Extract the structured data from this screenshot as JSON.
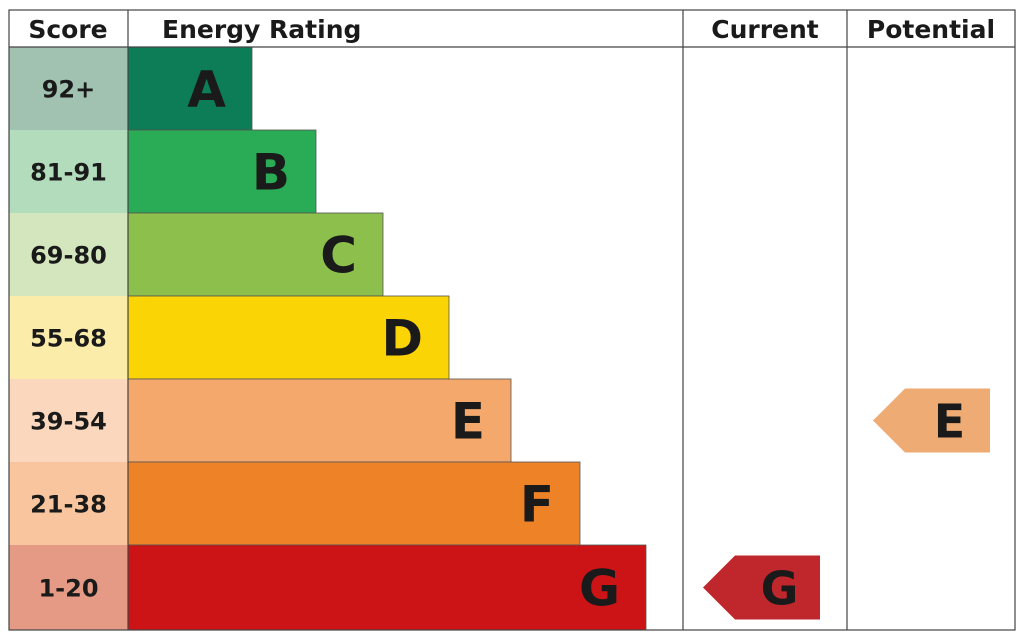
{
  "headers": {
    "score": "Score",
    "energy_rating": "Energy Rating",
    "current": "Current",
    "potential": "Potential"
  },
  "chart_data": {
    "type": "bar",
    "bands": [
      {
        "letter": "A",
        "score_range": "92+",
        "color": "#0c7d57",
        "score_bg": "#a2c2b1"
      },
      {
        "letter": "B",
        "score_range": "81-91",
        "color": "#2aab55",
        "score_bg": "#b3dcbc"
      },
      {
        "letter": "C",
        "score_range": "69-80",
        "color": "#8dbf4c",
        "score_bg": "#d3e6bd"
      },
      {
        "letter": "D",
        "score_range": "55-68",
        "color": "#fbd405",
        "score_bg": "#fbecaa"
      },
      {
        "letter": "E",
        "score_range": "39-54",
        "color": "#f4a86b",
        "score_bg": "#fad7bd"
      },
      {
        "letter": "F",
        "score_range": "21-38",
        "color": "#ee8227",
        "score_bg": "#f8c59e"
      },
      {
        "letter": "G",
        "score_range": "1-20",
        "color": "#cc1417",
        "score_bg": "#e59a86"
      }
    ],
    "current": {
      "letter": "G",
      "color": "#c0272d"
    },
    "potential": {
      "letter": "E",
      "color": "#efab74"
    }
  }
}
